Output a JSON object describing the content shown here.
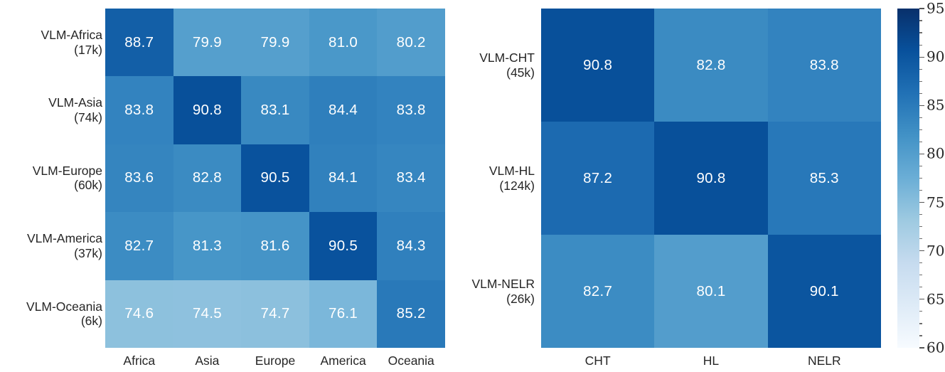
{
  "figure": {
    "background": "#ffffff",
    "label_color": "#262626",
    "cell_text_color": "#ffffff",
    "tick_color": "#555555"
  },
  "chart_data": [
    {
      "type": "heatmap",
      "name": "region-heatmap",
      "rows": [
        {
          "label": "VLM-Africa",
          "count": "(17k)"
        },
        {
          "label": "VLM-Asia",
          "count": "(74k)"
        },
        {
          "label": "VLM-Europe",
          "count": "(60k)"
        },
        {
          "label": "VLM-America",
          "count": "(37k)"
        },
        {
          "label": "VLM-Oceania",
          "count": "(6k)"
        }
      ],
      "columns": [
        "Africa",
        "Asia",
        "Europe",
        "America",
        "Oceania"
      ],
      "values": [
        [
          88.7,
          79.9,
          79.9,
          81.0,
          80.2
        ],
        [
          83.8,
          90.8,
          83.1,
          84.4,
          83.8
        ],
        [
          83.6,
          82.8,
          90.5,
          84.1,
          83.4
        ],
        [
          82.7,
          81.3,
          81.6,
          90.5,
          84.3
        ],
        [
          74.6,
          74.5,
          74.7,
          76.1,
          85.2
        ]
      ],
      "value_decimals": 1
    },
    {
      "type": "heatmap",
      "name": "resource-heatmap",
      "rows": [
        {
          "label": "VLM-CHT",
          "count": "(45k)"
        },
        {
          "label": "VLM-HL",
          "count": "(124k)"
        },
        {
          "label": "VLM-NELR",
          "count": "(26k)"
        }
      ],
      "columns": [
        "CHT",
        "HL",
        "NELR"
      ],
      "values": [
        [
          90.8,
          82.8,
          83.8
        ],
        [
          87.2,
          90.8,
          85.3
        ],
        [
          82.7,
          80.1,
          90.1
        ]
      ],
      "value_decimals": 1
    }
  ],
  "colorbar": {
    "colormap_name": "Blues",
    "vmin": 60,
    "vmax": 95,
    "major_ticks": [
      95,
      90,
      85,
      80,
      75,
      70,
      65,
      60
    ],
    "minor_ticks_per_interval": 3,
    "stops": [
      "#f7fbff",
      "#deebf7",
      "#c6dbef",
      "#9ecae1",
      "#6baed6",
      "#4292c6",
      "#2171b5",
      "#08519c",
      "#08306b"
    ]
  }
}
